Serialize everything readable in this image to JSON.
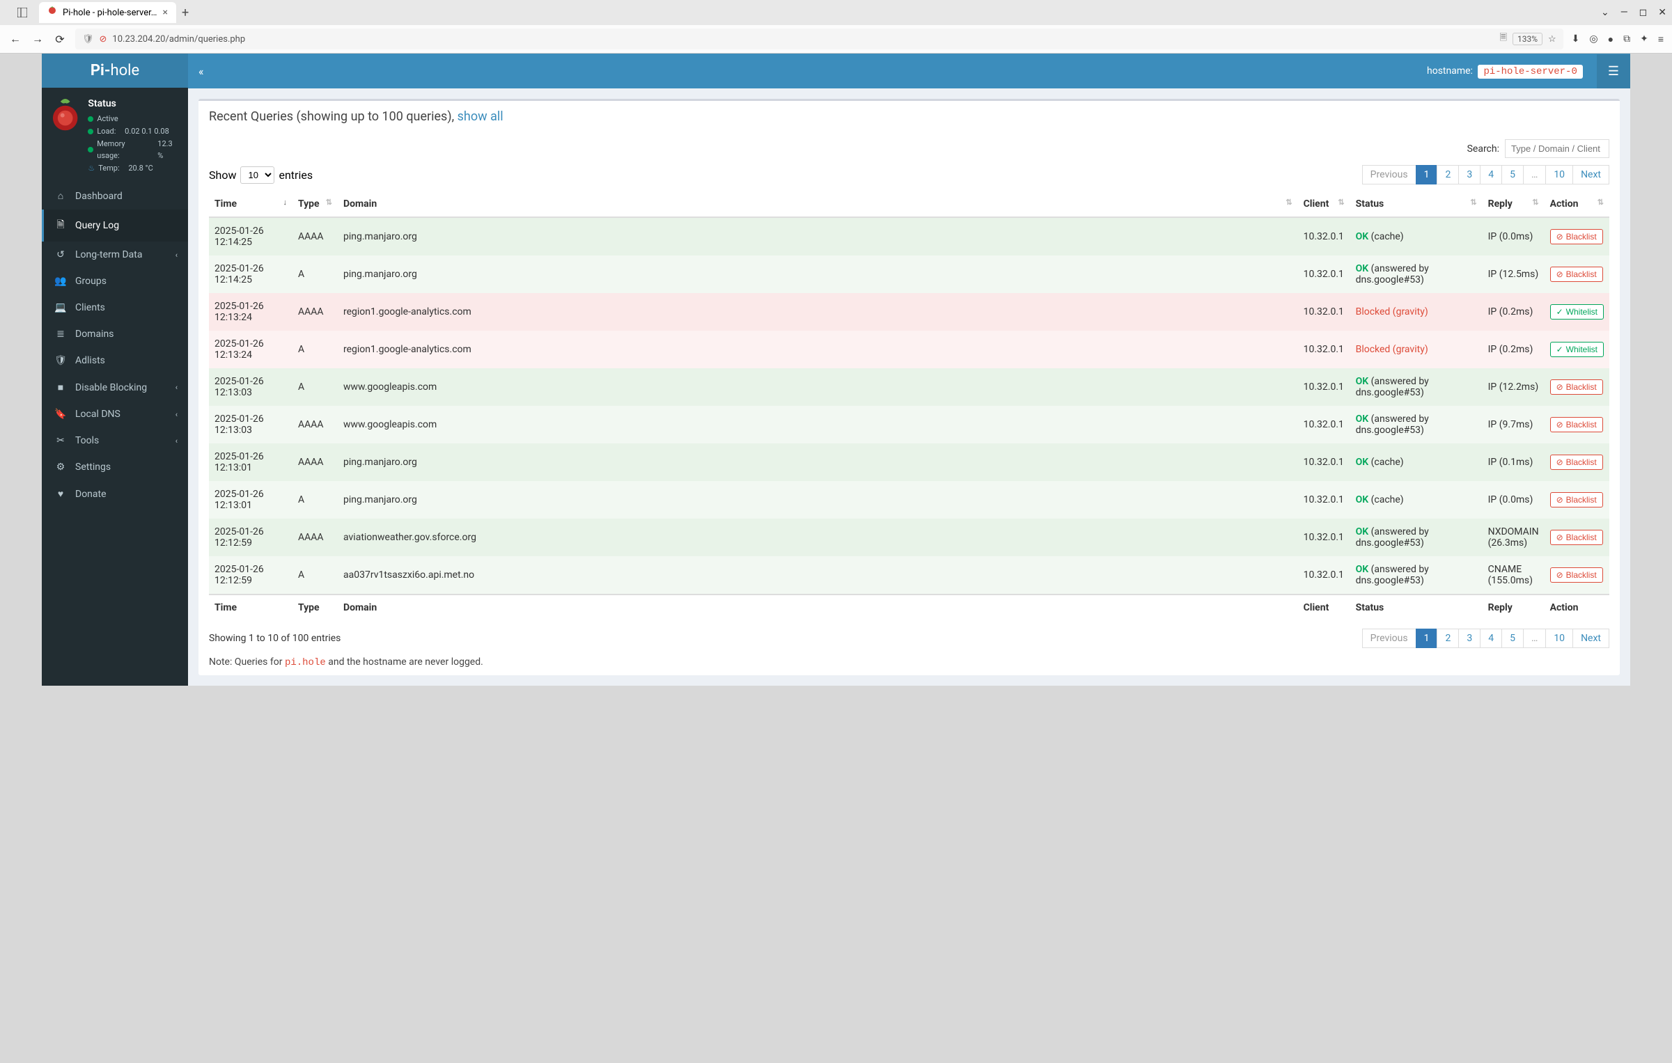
{
  "browser": {
    "tab_title": "Pi-hole - pi-hole-server…",
    "url": "10.23.204.20/admin/queries.php",
    "zoom": "133%"
  },
  "brand": {
    "prefix": "Pi-",
    "suffix": "hole"
  },
  "status": {
    "title": "Status",
    "active": "Active",
    "load_label": "Load:",
    "load_values": "0.02  0.1  0.08",
    "memory_label": "Memory usage:",
    "memory_value": "12.3 %",
    "temp_label": "Temp:",
    "temp_value": "20.8 °C"
  },
  "nav": {
    "dashboard": "Dashboard",
    "querylog": "Query Log",
    "longterm": "Long-term Data",
    "groups": "Groups",
    "clients": "Clients",
    "domains": "Domains",
    "adlists": "Adlists",
    "disable": "Disable Blocking",
    "localdns": "Local DNS",
    "tools": "Tools",
    "settings": "Settings",
    "donate": "Donate"
  },
  "topbar": {
    "hostname_label": "hostname:",
    "hostname_value": "pi-hole-server-0"
  },
  "header": {
    "title": "Recent Queries (showing up to 100 queries), ",
    "link": "show all"
  },
  "search": {
    "label": "Search:",
    "placeholder": "Type / Domain / Client"
  },
  "entries": {
    "show": "Show",
    "value": "10",
    "suffix": "entries"
  },
  "pagination": {
    "prev": "Previous",
    "next": "Next",
    "pages": [
      "1",
      "2",
      "3",
      "4",
      "5",
      "…",
      "10"
    ]
  },
  "columns": {
    "time": "Time",
    "type": "Type",
    "domain": "Domain",
    "client": "Client",
    "status": "Status",
    "reply": "Reply",
    "action": "Action"
  },
  "rows": [
    {
      "time": "2025-01-26 12:14:25",
      "type": "AAAA",
      "domain": "ping.manjaro.org",
      "client": "10.32.0.1",
      "status_ok": "OK",
      "status_extra": " (cache)",
      "reply": "IP (0.0ms)",
      "action": "Blacklist",
      "cls": "row-ok"
    },
    {
      "time": "2025-01-26 12:14:25",
      "type": "A",
      "domain": "ping.manjaro.org",
      "client": "10.32.0.1",
      "status_ok": "OK",
      "status_extra": " (answered by dns.google#53)",
      "reply": "IP (12.5ms)",
      "action": "Blacklist",
      "cls": "row-ok2"
    },
    {
      "time": "2025-01-26 12:13:24",
      "type": "AAAA",
      "domain": "region1.google-analytics.com",
      "client": "10.32.0.1",
      "status_blocked": "Blocked (gravity)",
      "reply": "IP (0.2ms)",
      "action": "Whitelist",
      "cls": "row-blocked"
    },
    {
      "time": "2025-01-26 12:13:24",
      "type": "A",
      "domain": "region1.google-analytics.com",
      "client": "10.32.0.1",
      "status_blocked": "Blocked (gravity)",
      "reply": "IP (0.2ms)",
      "action": "Whitelist",
      "cls": "row-blocked2"
    },
    {
      "time": "2025-01-26 12:13:03",
      "type": "A",
      "domain": "www.googleapis.com",
      "client": "10.32.0.1",
      "status_ok": "OK",
      "status_extra": " (answered by dns.google#53)",
      "reply": "IP (12.2ms)",
      "action": "Blacklist",
      "cls": "row-ok"
    },
    {
      "time": "2025-01-26 12:13:03",
      "type": "AAAA",
      "domain": "www.googleapis.com",
      "client": "10.32.0.1",
      "status_ok": "OK",
      "status_extra": " (answered by dns.google#53)",
      "reply": "IP (9.7ms)",
      "action": "Blacklist",
      "cls": "row-ok2"
    },
    {
      "time": "2025-01-26 12:13:01",
      "type": "AAAA",
      "domain": "ping.manjaro.org",
      "client": "10.32.0.1",
      "status_ok": "OK",
      "status_extra": " (cache)",
      "reply": "IP (0.1ms)",
      "action": "Blacklist",
      "cls": "row-ok"
    },
    {
      "time": "2025-01-26 12:13:01",
      "type": "A",
      "domain": "ping.manjaro.org",
      "client": "10.32.0.1",
      "status_ok": "OK",
      "status_extra": " (cache)",
      "reply": "IP (0.0ms)",
      "action": "Blacklist",
      "cls": "row-ok2"
    },
    {
      "time": "2025-01-26 12:12:59",
      "type": "AAAA",
      "domain": "aviationweather.gov.sforce.org",
      "client": "10.32.0.1",
      "status_ok": "OK",
      "status_extra": " (answered by dns.google#53)",
      "reply": "NXDOMAIN (26.3ms)",
      "action": "Blacklist",
      "cls": "row-ok"
    },
    {
      "time": "2025-01-26 12:12:59",
      "type": "A",
      "domain": "aa037rv1tsaszxi6o.api.met.no",
      "client": "10.32.0.1",
      "status_ok": "OK",
      "status_extra": " (answered by dns.google#53)",
      "reply": "CNAME (155.0ms)",
      "action": "Blacklist",
      "cls": "row-ok2"
    }
  ],
  "info": "Showing 1 to 10 of 100 entries",
  "note_prefix": "Note: Queries for ",
  "note_code": "pi.hole",
  "note_suffix": " and the hostname are never logged."
}
